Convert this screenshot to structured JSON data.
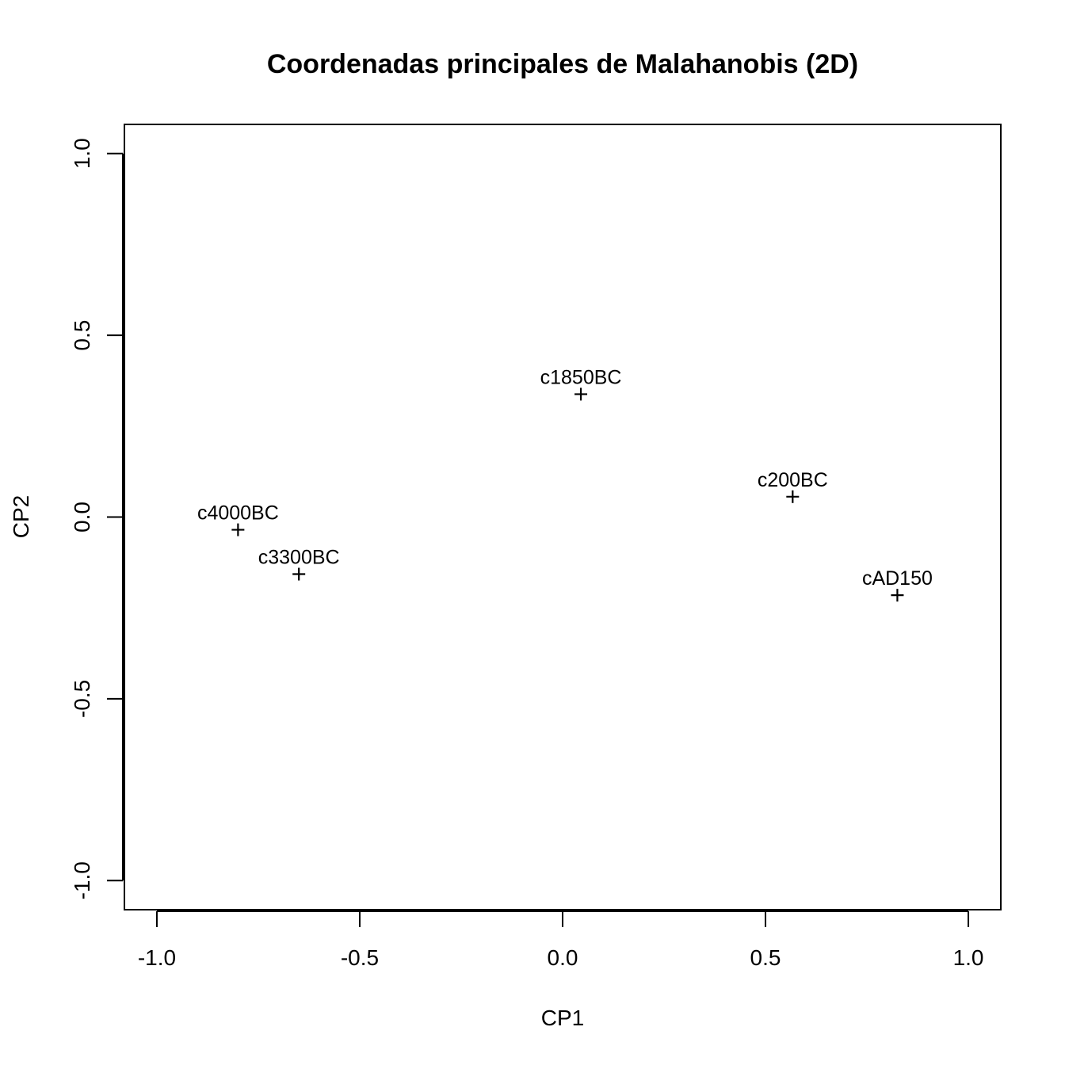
{
  "chart_data": {
    "type": "scatter",
    "title": "Coordenadas principales de Malahanobis (2D)",
    "xlabel": "CP1",
    "ylabel": "CP2",
    "xlim": [
      -1.08,
      1.08
    ],
    "ylim": [
      -1.08,
      1.08
    ],
    "xticks": [
      -1.0,
      -0.5,
      0.0,
      0.5,
      1.0
    ],
    "yticks": [
      -1.0,
      -0.5,
      0.0,
      0.5,
      1.0
    ],
    "xtick_labels": [
      "-1.0",
      "-0.5",
      "0.0",
      "0.5",
      "1.0"
    ],
    "ytick_labels": [
      "-1.0",
      "-0.5",
      "0.0",
      "0.5",
      "1.0"
    ],
    "marker": "+",
    "grid": false,
    "points": [
      {
        "label": "c4000BC",
        "x": -0.8,
        "y": -0.035
      },
      {
        "label": "c3300BC",
        "x": -0.65,
        "y": -0.157
      },
      {
        "label": "c1850BC",
        "x": 0.045,
        "y": 0.338
      },
      {
        "label": "c200BC",
        "x": 0.567,
        "y": 0.056
      },
      {
        "label": "cAD150",
        "x": 0.825,
        "y": -0.215
      }
    ]
  }
}
